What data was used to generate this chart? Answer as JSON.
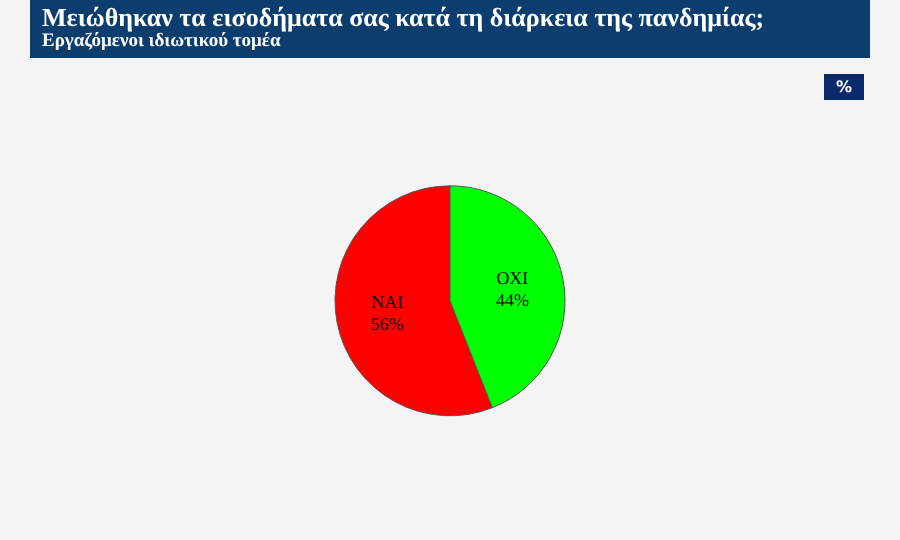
{
  "chart_data": {
    "type": "pie",
    "title": "Μειώθηκαν τα εισοδήματα σας κατά τη διάρκεια της πανδημίας;",
    "subtitle": "Εργαζόμενοι ιδιωτικού τομέα",
    "annotations": [
      "%"
    ],
    "categories": [
      "ΝΑΙ",
      "ΟΧΙ"
    ],
    "values": [
      56,
      44
    ],
    "colors": [
      "#ff0000",
      "#00ff00"
    ],
    "value_labels": [
      "56%",
      "44%"
    ],
    "legend": false
  }
}
